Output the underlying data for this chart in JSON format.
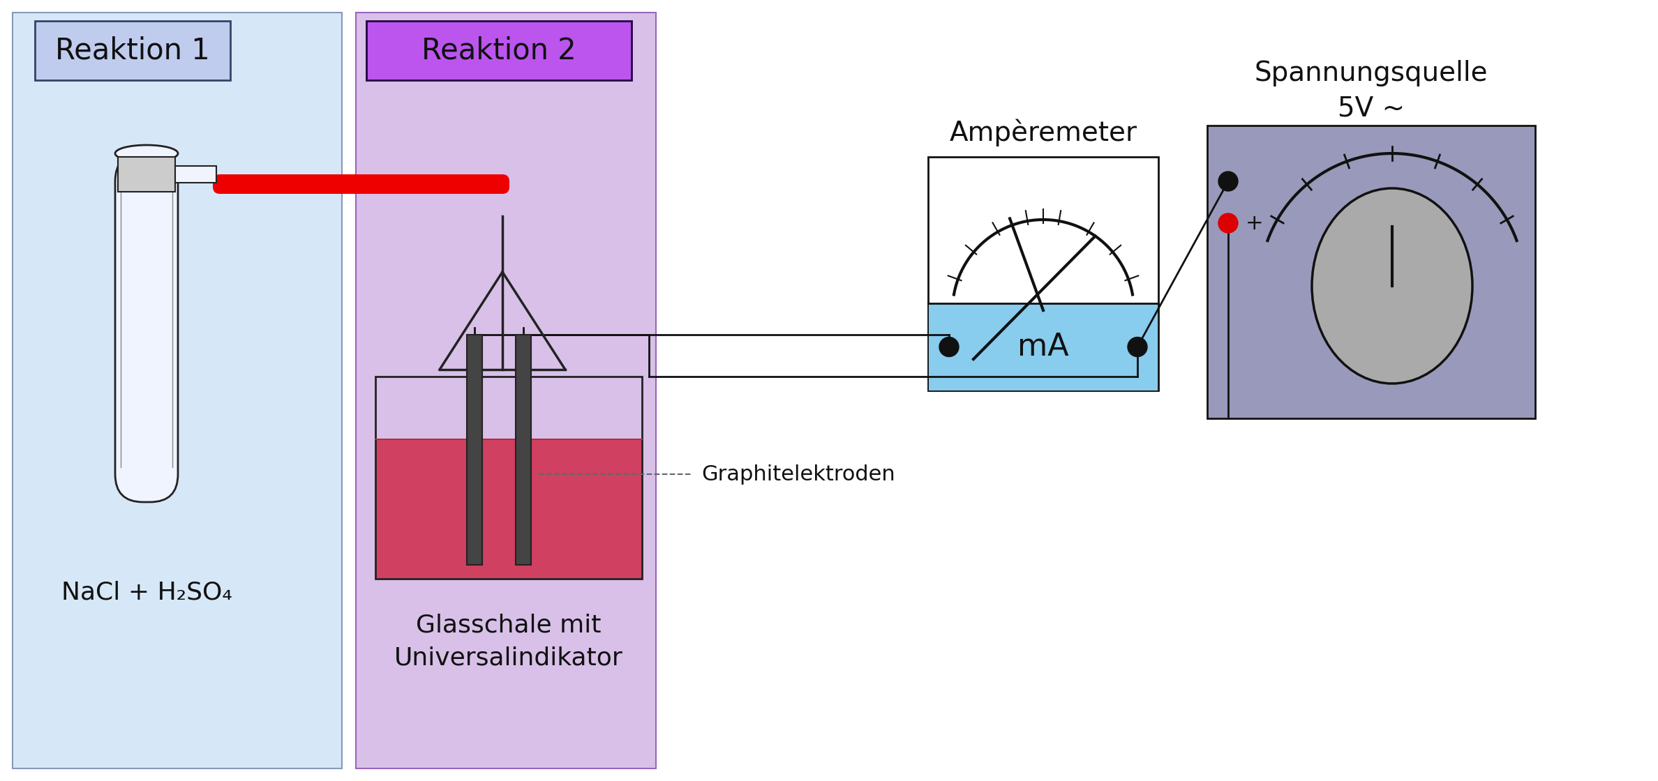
{
  "bg_color": "#ffffff",
  "reaktion1_bg": "#d6e8f7",
  "reaktion1_border": "#8899bb",
  "reaktion1_label_bg": "#c0ccee",
  "reaktion1_label_border": "#334466",
  "reaktion1_label": "Reaktion 1",
  "reaktion2_bg": "#d8c0e8",
  "reaktion2_border": "#9966bb",
  "reaktion2_label_bg": "#bb55ee",
  "reaktion2_label_border": "#220044",
  "reaktion2_label": "Reaktion 2",
  "nacl_text": "NaCl + H₂SO₄",
  "glasschale_text": "Glasschale mit\nUniversalindikator",
  "graphit_text": "Graphitelektroden",
  "amperemeter_text": "Ampèremeter",
  "spannungsquelle_text": "Spannungsquelle\n5V ~",
  "ma_text": "mA",
  "tube_color": "#f0f4ff",
  "tube_border": "#222222",
  "glass_dish_liquid": "#d04060",
  "glass_dish_border": "#222222",
  "electrode_color": "#222222",
  "electrode_fill": "#444444",
  "red_tube_color": "#ee0000",
  "ammeter_bg": "#ffffff",
  "ammeter_lower_bg": "#88ccee",
  "ammeter_border": "#111111",
  "voltage_source_bg": "#9999bb",
  "voltage_source_border": "#111111",
  "knob_color": "#aaaaaa",
  "red_connector_color": "#dd0000",
  "wire_color": "#111111"
}
